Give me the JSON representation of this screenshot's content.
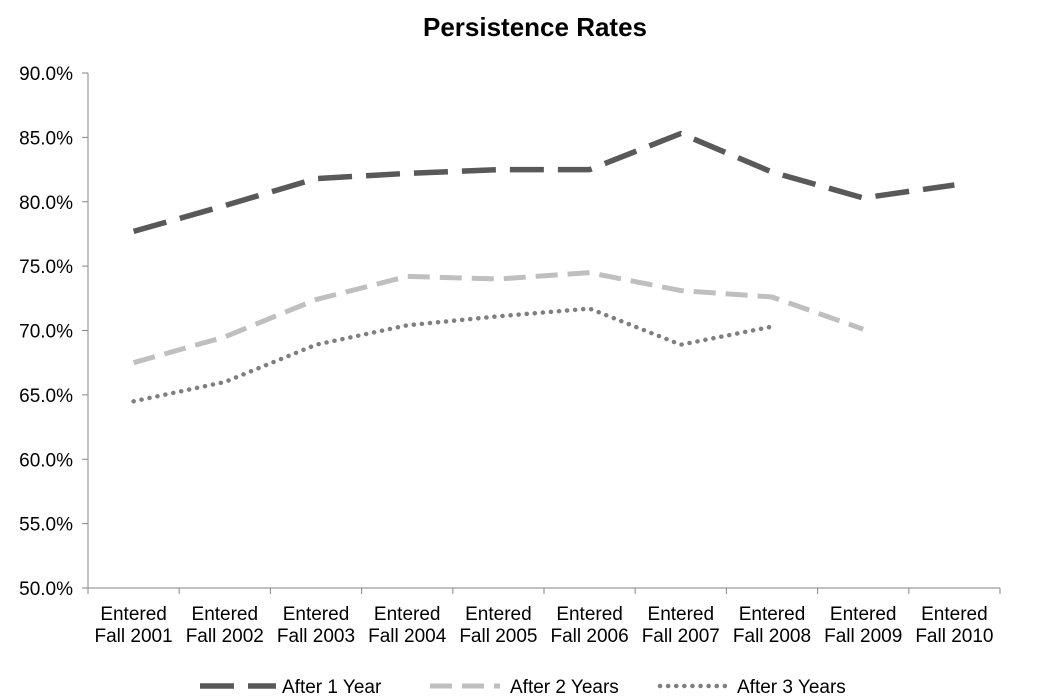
{
  "chart_data": {
    "type": "line",
    "title": "Persistence Rates",
    "xlabel": "",
    "ylabel": "",
    "categories": [
      [
        "Entered",
        "Fall 2001"
      ],
      [
        "Entered",
        "Fall 2002"
      ],
      [
        "Entered",
        "Fall 2003"
      ],
      [
        "Entered",
        "Fall 2004"
      ],
      [
        "Entered",
        "Fall 2005"
      ],
      [
        "Entered",
        "Fall 2006"
      ],
      [
        "Entered",
        "Fall 2007"
      ],
      [
        "Entered",
        "Fall 2008"
      ],
      [
        "Entered",
        "Fall 2009"
      ],
      [
        "Entered",
        "Fall 2010"
      ]
    ],
    "ylim": [
      50,
      90
    ],
    "yticks": [
      "50.0%",
      "55.0%",
      "60.0%",
      "65.0%",
      "70.0%",
      "75.0%",
      "80.0%",
      "85.0%",
      "90.0%"
    ],
    "grid": false,
    "legend_position": "bottom",
    "series": [
      {
        "name": "After 1 Year",
        "color": "#595959",
        "dash": "long-dash",
        "values": [
          77.7,
          79.7,
          81.8,
          82.2,
          82.5,
          82.5,
          85.3,
          82.3,
          80.3,
          81.3
        ]
      },
      {
        "name": "After 2 Years",
        "color": "#bfbfbf",
        "dash": "dash",
        "values": [
          67.5,
          69.5,
          72.4,
          74.2,
          74.0,
          74.5,
          73.1,
          72.6,
          70.1,
          null
        ]
      },
      {
        "name": "After 3 Years",
        "color": "#7f7f7f",
        "dash": "dot",
        "values": [
          64.5,
          66.0,
          68.9,
          70.4,
          71.1,
          71.7,
          68.9,
          70.3,
          null,
          null
        ]
      }
    ]
  }
}
